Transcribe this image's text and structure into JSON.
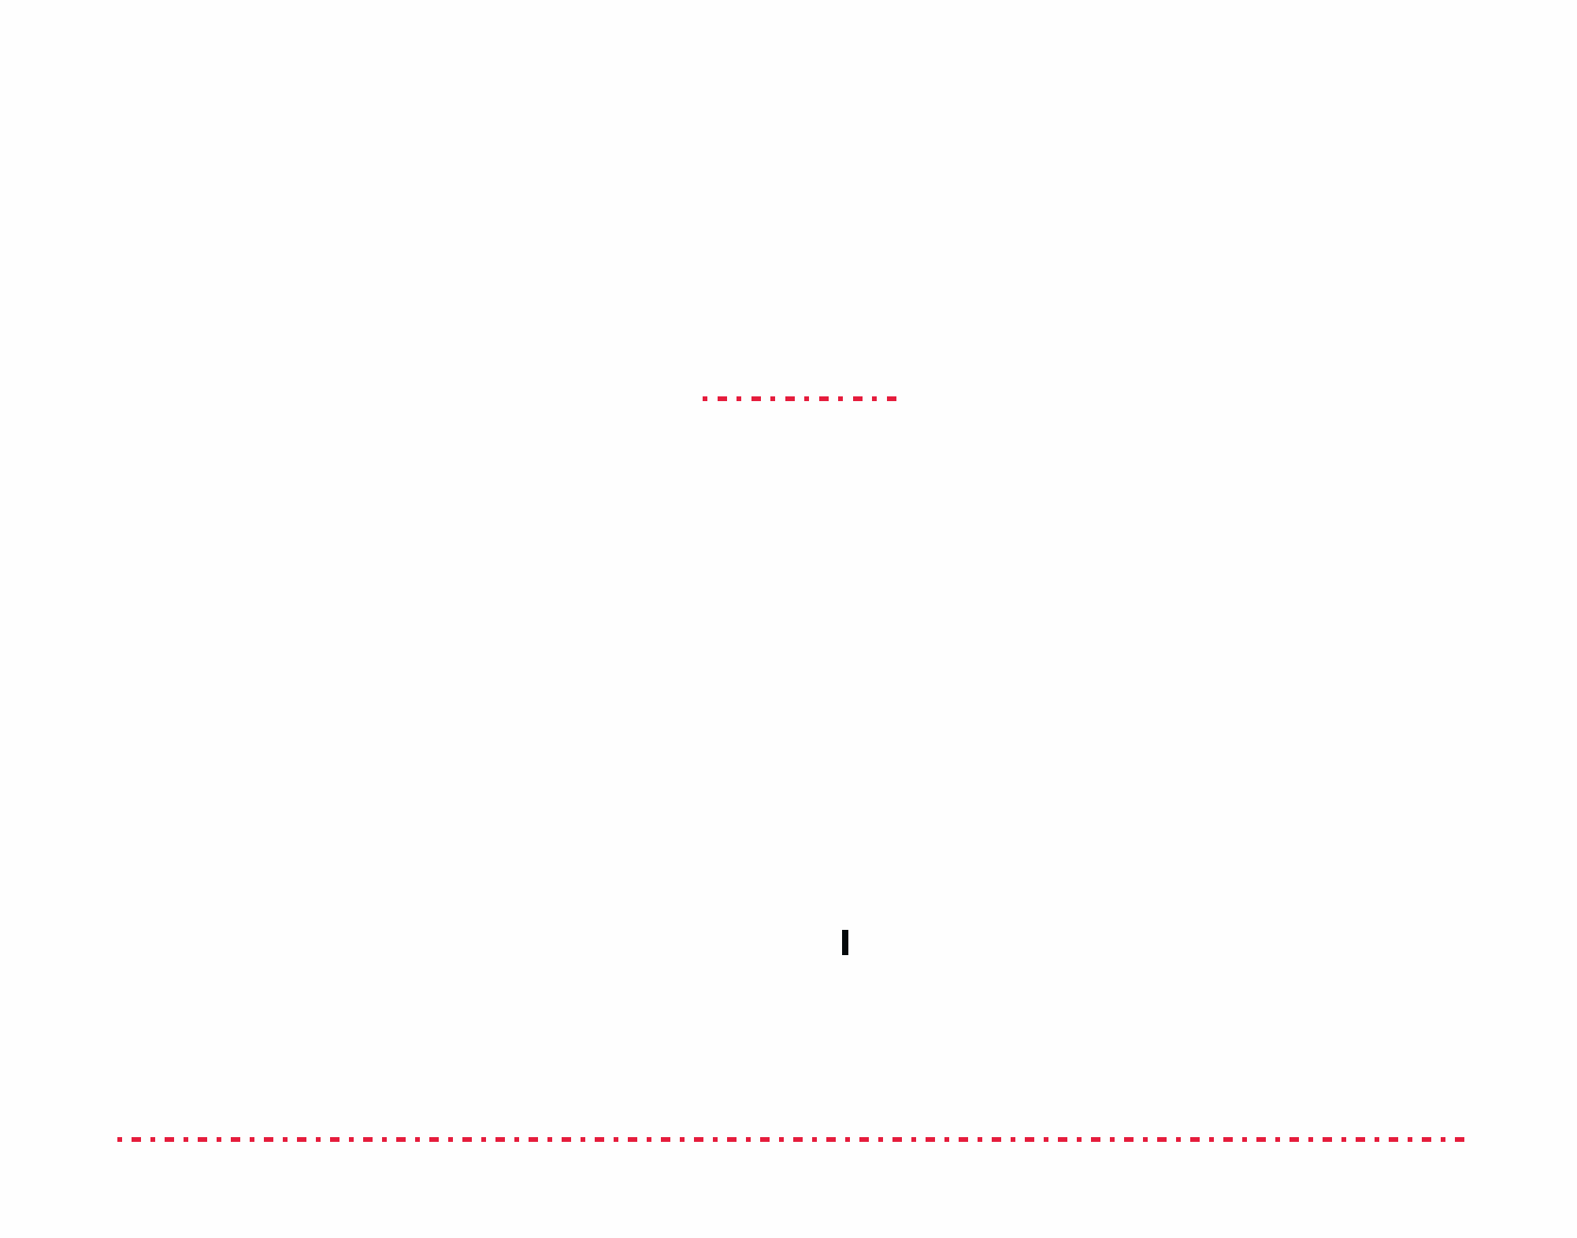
{
  "colors": {
    "dashed_line": "#e51c3c",
    "caret": "#050a0c",
    "background": "#fefefe"
  }
}
